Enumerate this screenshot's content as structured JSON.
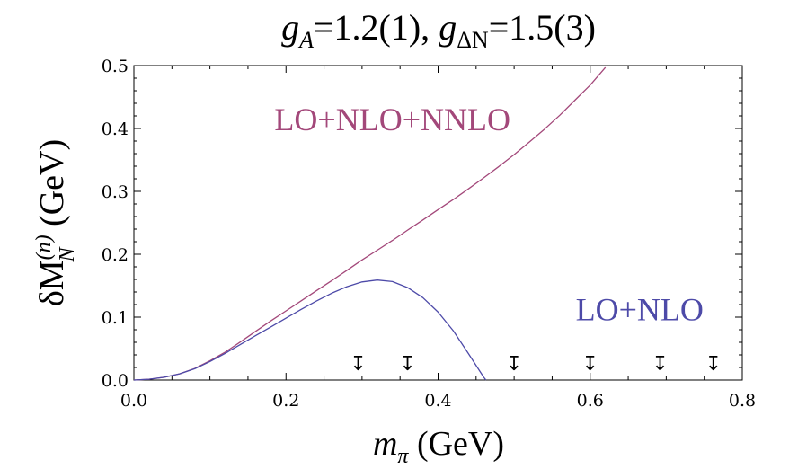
{
  "chart_data": {
    "type": "line",
    "title": {
      "g_A": "g",
      "g_A_sub": "A",
      "g_A_val": "=1.2(1), ",
      "g_DN": "g",
      "g_DN_sub": "ΔN",
      "g_DN_val": "=1.5(3)"
    },
    "xlabel": {
      "main": "m",
      "sub": "π",
      "unit": " (GeV)"
    },
    "ylabel": {
      "prefix": "δM",
      "sup": "(n)",
      "sub": "N",
      "unit": " (GeV)"
    },
    "xlim": [
      0.0,
      0.8
    ],
    "ylim": [
      0.0,
      0.5
    ],
    "xticks": [
      "0.0",
      "0.2",
      "0.4",
      "0.6",
      "0.8"
    ],
    "yticks": [
      "0.0",
      "0.1",
      "0.2",
      "0.3",
      "0.4",
      "0.5"
    ],
    "grid": false,
    "series": [
      {
        "name": "LO+NLO+NNLO",
        "color": "#a3487a",
        "x": [
          0.0,
          0.02,
          0.04,
          0.06,
          0.08,
          0.1,
          0.12,
          0.14,
          0.16,
          0.18,
          0.2,
          0.22,
          0.24,
          0.26,
          0.28,
          0.3,
          0.32,
          0.34,
          0.36,
          0.38,
          0.4,
          0.42,
          0.44,
          0.46,
          0.48,
          0.5,
          0.52,
          0.54,
          0.56,
          0.58,
          0.6,
          0.62
        ],
        "y": [
          0.0,
          0.0013,
          0.0045,
          0.0098,
          0.0185,
          0.0305,
          0.0445,
          0.0605,
          0.0775,
          0.094,
          0.11,
          0.126,
          0.142,
          0.158,
          0.1745,
          0.191,
          0.2065,
          0.222,
          0.2385,
          0.2545,
          0.271,
          0.287,
          0.304,
          0.3215,
          0.3395,
          0.3585,
          0.3785,
          0.399,
          0.421,
          0.445,
          0.469,
          0.497
        ]
      },
      {
        "name": "LO+NLO",
        "color": "#4d4aa8",
        "x": [
          0.0,
          0.02,
          0.04,
          0.06,
          0.08,
          0.1,
          0.12,
          0.14,
          0.16,
          0.18,
          0.2,
          0.22,
          0.24,
          0.26,
          0.28,
          0.3,
          0.32,
          0.34,
          0.36,
          0.38,
          0.4,
          0.42,
          0.44,
          0.46,
          0.463
        ],
        "y": [
          0.0,
          0.0013,
          0.0045,
          0.0098,
          0.018,
          0.0295,
          0.0425,
          0.0565,
          0.0705,
          0.0845,
          0.0985,
          0.1125,
          0.1255,
          0.138,
          0.1485,
          0.156,
          0.159,
          0.1565,
          0.147,
          0.131,
          0.108,
          0.0785,
          0.042,
          0.0045,
          0.0
        ]
      }
    ],
    "annotations": [
      {
        "text": "LO+NLO+NNLO",
        "color": "#a3487a",
        "x": 0.34,
        "y": 0.397
      },
      {
        "text": "LO+NLO",
        "color": "#4d4aa8",
        "x": 0.665,
        "y": 0.095
      }
    ],
    "markers": {
      "glyph": "↧",
      "x": [
        0.295,
        0.36,
        0.5,
        0.6,
        0.692,
        0.762
      ],
      "y": 0.027
    }
  }
}
